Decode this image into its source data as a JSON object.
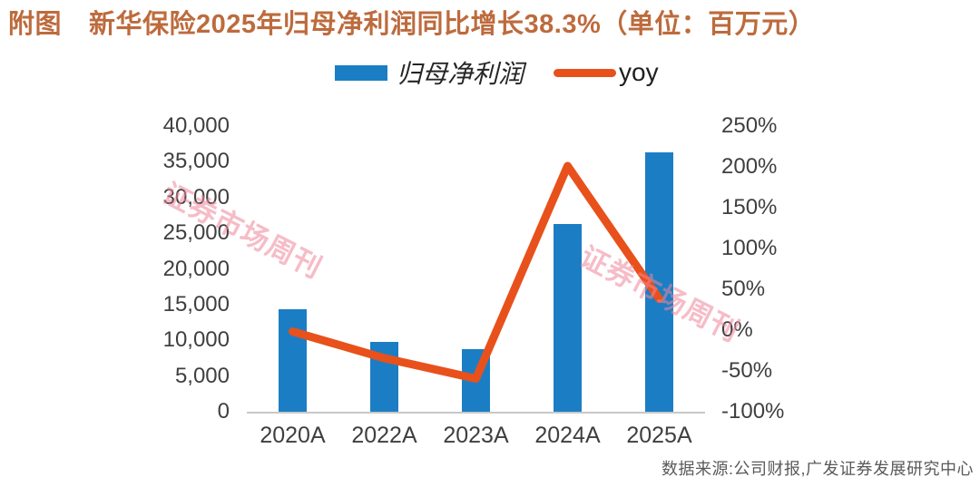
{
  "title": {
    "label": "附图",
    "text": "新华保险2025年归母净利润同比增长38.3%（单位：百万元）"
  },
  "legend": {
    "bar_label": "归母净利润",
    "line_label": "yoy"
  },
  "watermark": {
    "text": "证券市场周刊"
  },
  "source": "数据来源:公司财报,广发证券发展研究中心",
  "colors": {
    "title_text": "#bd6b3d",
    "bar_fill": "#1b7ec4",
    "line_stroke": "#e8511b",
    "axis_text": "#3f3f3f",
    "baseline": "#c8c8c8",
    "source_text": "#5a5a5a",
    "watermark_pink": "#f0869b"
  },
  "chart_data": {
    "type": "combo (bar + line, dual axis)",
    "title": "新华保险2025年归母净利润同比增长38.3%（单位：百万元）",
    "categories": [
      "2020A",
      "2022A",
      "2023A",
      "2024A",
      "2025A"
    ],
    "series": [
      {
        "name": "归母净利润",
        "type": "bar",
        "y_axis": "left",
        "color": "#1b7ec4",
        "values": [
          14294,
          9822,
          8712,
          26229,
          36275
        ]
      },
      {
        "name": "yoy",
        "type": "line",
        "y_axis": "right",
        "color": "#e8511b",
        "values": [
          -1.8,
          -34.3,
          -59.5,
          201.1,
          38.3
        ]
      }
    ],
    "left_axis": {
      "min": 0,
      "max": 40000,
      "step": 5000,
      "tick_labels": [
        "40,000",
        "35,000",
        "30,000",
        "25,000",
        "20,000",
        "15,000",
        "10,000",
        "5,000",
        "0"
      ]
    },
    "right_axis": {
      "min": -100,
      "max": 250,
      "step": 50,
      "tick_labels": [
        "250%",
        "200%",
        "150%",
        "100%",
        "50%",
        "0%",
        "-50%",
        "-100%"
      ]
    },
    "grid": false,
    "legend_position": "top-center",
    "unit": "百万元"
  }
}
